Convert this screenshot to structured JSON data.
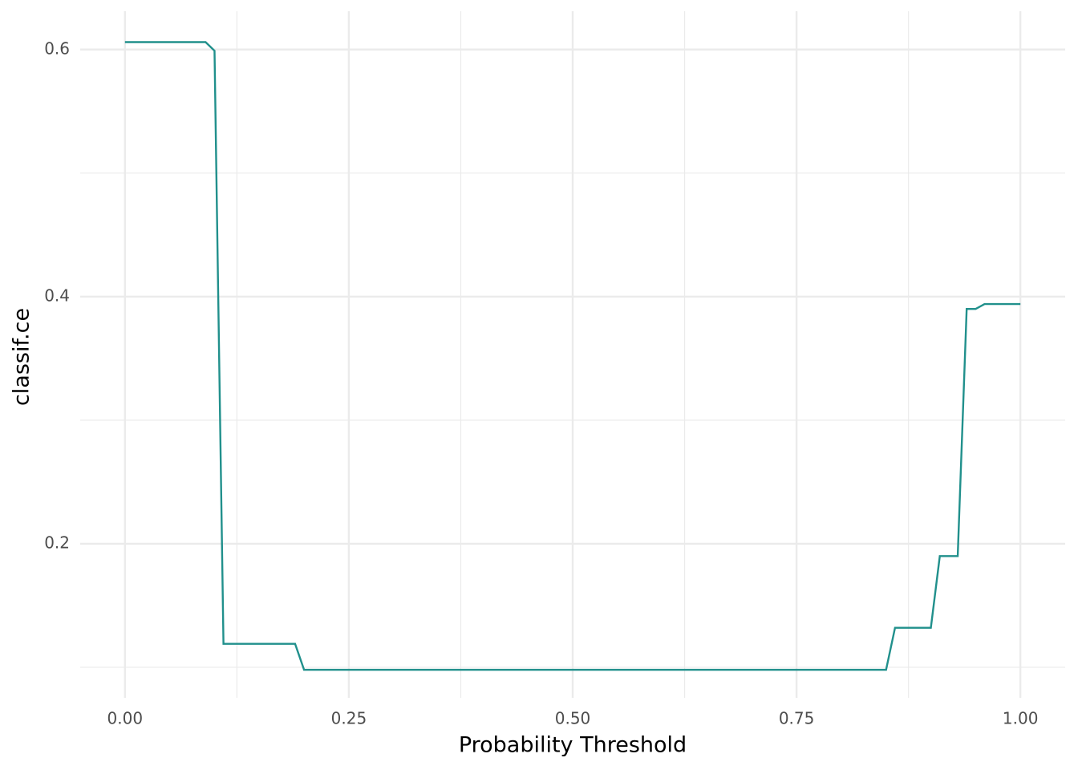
{
  "chart_data": {
    "type": "line",
    "x_label": "Probability Threshold",
    "y_label": "classif.ce",
    "x": [
      0,
      0.09,
      0.1,
      0.11,
      0.19,
      0.2,
      0.85,
      0.86,
      0.9,
      0.91,
      0.93,
      0.94,
      0.95,
      0.96,
      1.0
    ],
    "series": [
      {
        "color": "#21908c",
        "values": [
          0.606,
          0.606,
          0.599,
          0.119,
          0.119,
          0.098,
          0.098,
          0.132,
          0.132,
          0.19,
          0.19,
          0.39,
          0.39,
          0.394,
          0.394
        ]
      }
    ],
    "xlim": [
      -0.05,
      1.05
    ],
    "ylim": [
      0.0753,
      0.631
    ],
    "xticks": [
      {
        "value": 0,
        "label": "0.00"
      },
      {
        "value": 0.25,
        "label": "0.25"
      },
      {
        "value": 0.5,
        "label": "0.50"
      },
      {
        "value": 0.75,
        "label": "0.75"
      },
      {
        "value": 1,
        "label": "1.00"
      }
    ],
    "yticks": [
      0.2,
      0.4,
      0.6
    ],
    "xminorticks": [
      0.125,
      0.375,
      0.625,
      0.875
    ],
    "yminorticks": [
      0.1,
      0.3,
      0.5
    ],
    "grid": true
  }
}
